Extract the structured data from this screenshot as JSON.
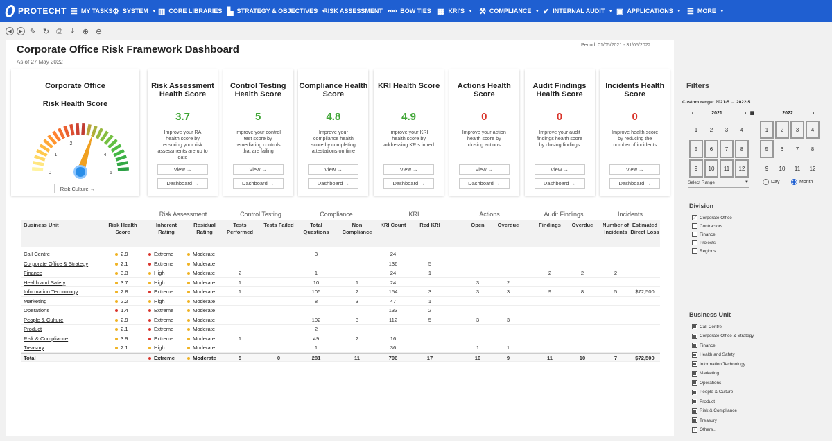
{
  "nav": {
    "logo": "PROTECHT",
    "items": [
      {
        "label": "MY TASKS",
        "icon": "☰",
        "caret": false
      },
      {
        "label": "SYSTEM",
        "icon": "⚙",
        "caret": true
      },
      {
        "label": "CORE LIBRARIES",
        "icon": "▥",
        "caret": true
      },
      {
        "label": "STRATEGY & OBJECTIVES",
        "icon": "▙",
        "caret": true
      },
      {
        "label": "RISK ASSESSMENT",
        "icon": "♆",
        "caret": true
      },
      {
        "label": "BOW TIES",
        "icon": "⚯",
        "caret": false
      },
      {
        "label": "KRI'S",
        "icon": "▦",
        "caret": true
      },
      {
        "label": "COMPLIANCE",
        "icon": "⚒",
        "caret": true
      },
      {
        "label": "INTERNAL AUDIT",
        "icon": "✔",
        "caret": true
      },
      {
        "label": "APPLICATIONS",
        "icon": "▣",
        "caret": true
      },
      {
        "label": "MORE",
        "icon": "☰",
        "caret": true
      }
    ]
  },
  "page": {
    "title": "Corporate Office Risk Framework Dashboard",
    "as_of": "As of 27 May 2022",
    "period": "Period: 01/05/2021 - 31/05/2022"
  },
  "corporate_card": {
    "title_line1": "Corporate Office",
    "title_line2": "Risk Health Score",
    "gauge_labels": [
      "0",
      "1",
      "2",
      "3",
      "4",
      "5"
    ],
    "gauge_value": 3,
    "button": "Risk Culture →"
  },
  "score_cards": [
    {
      "title": "Risk Assessment Health Score",
      "score": "3.7",
      "color": "#3fa535",
      "desc": "Improve your RA health score by ensuring your risk assessments are up to date",
      "view": "View →",
      "dashboard": "Dashboard →"
    },
    {
      "title": "Control Testing Health Score",
      "score": "5",
      "color": "#3fa535",
      "desc": "Improve your control test score by remediating controls that are failing",
      "view": "View →",
      "dashboard": "Dashboard →"
    },
    {
      "title": "Compliance Health Score",
      "score": "4.8",
      "color": "#3fa535",
      "desc": "Improve your compliance health score by completing attestations on time",
      "view": "View →",
      "dashboard": "Dashboard →"
    },
    {
      "title": "KRI Health Score",
      "score": "4.9",
      "color": "#3fa535",
      "desc": "Improve your KRI health score by addressing KRIs in red",
      "view": "View →",
      "dashboard": "Dashboard →"
    },
    {
      "title": "Actions Health Score",
      "score": "0",
      "color": "#d9342b",
      "desc": "Improve your action health score by closing actions",
      "view": "View →",
      "dashboard": "Dashboard →"
    },
    {
      "title": "Audit Findings Health Score",
      "score": "0",
      "color": "#d9342b",
      "desc": "Improve your audit findings health score by closing findings",
      "view": "View →",
      "dashboard": "Dashboard →"
    },
    {
      "title": "Incidents Health Score",
      "score": "0",
      "color": "#d9342b",
      "desc": "Improve health score by reducing the number of incidents",
      "view": "View →",
      "dashboard": "Dashboard →"
    }
  ],
  "table": {
    "groups": [
      "Risk Assessment",
      "Control Testing",
      "Compliance",
      "KRI",
      "Actions",
      "Audit Findings",
      "Incidents"
    ],
    "headers": [
      "Business Unit",
      "Risk Health Score",
      "Inherent Rating",
      "Residual Rating",
      "Tests Performed",
      "Tests Failed",
      "Total Questions",
      "Non Compliance",
      "KRI Count",
      "Red KRI",
      "Open",
      "Overdue",
      "Findings",
      "Overdue",
      "Number of Incidents",
      "Estimated Direct Loss"
    ],
    "rows": [
      {
        "bu": "Call Centre",
        "score": "2.9",
        "sc": "#f0b323",
        "inh": "Extreme",
        "ic": "#d9342b",
        "res": "Moderate",
        "rc": "#f0b323",
        "tp": "",
        "tf": "",
        "tq": "3",
        "nc": "",
        "kc": "24",
        "rk": "",
        "op": "",
        "od": "",
        "fi": "",
        "fo": "",
        "ni": "",
        "el": ""
      },
      {
        "bu": "Corporate Office & Strategy",
        "score": "2.1",
        "sc": "#f0b323",
        "inh": "Extreme",
        "ic": "#d9342b",
        "res": "Moderate",
        "rc": "#f0b323",
        "tp": "",
        "tf": "",
        "tq": "",
        "nc": "",
        "kc": "136",
        "rk": "5",
        "op": "",
        "od": "",
        "fi": "",
        "fo": "",
        "ni": "",
        "el": ""
      },
      {
        "bu": "Finance",
        "score": "3.3",
        "sc": "#f0b323",
        "inh": "High",
        "ic": "#f0b323",
        "res": "Moderate",
        "rc": "#f0b323",
        "tp": "2",
        "tf": "",
        "tq": "1",
        "nc": "",
        "kc": "24",
        "rk": "1",
        "op": "",
        "od": "",
        "fi": "2",
        "fo": "2",
        "ni": "2",
        "el": ""
      },
      {
        "bu": "Health and Safety",
        "score": "3.7",
        "sc": "#f0b323",
        "inh": "High",
        "ic": "#f0b323",
        "res": "Moderate",
        "rc": "#f0b323",
        "tp": "1",
        "tf": "",
        "tq": "10",
        "nc": "1",
        "kc": "24",
        "rk": "",
        "op": "3",
        "od": "2",
        "fi": "",
        "fo": "",
        "ni": "",
        "el": ""
      },
      {
        "bu": "Information Technology",
        "score": "2.8",
        "sc": "#f0b323",
        "inh": "Extreme",
        "ic": "#d9342b",
        "res": "Moderate",
        "rc": "#f0b323",
        "tp": "1",
        "tf": "",
        "tq": "105",
        "nc": "2",
        "kc": "154",
        "rk": "3",
        "op": "3",
        "od": "3",
        "fi": "9",
        "fo": "8",
        "ni": "5",
        "el": "$72,500"
      },
      {
        "bu": "Marketing",
        "score": "2.2",
        "sc": "#f0b323",
        "inh": "High",
        "ic": "#f0b323",
        "res": "Moderate",
        "rc": "#f0b323",
        "tp": "",
        "tf": "",
        "tq": "8",
        "nc": "3",
        "kc": "47",
        "rk": "1",
        "op": "",
        "od": "",
        "fi": "",
        "fo": "",
        "ni": "",
        "el": ""
      },
      {
        "bu": "Operations",
        "score": "1.4",
        "sc": "#d9342b",
        "inh": "Extreme",
        "ic": "#d9342b",
        "res": "Moderate",
        "rc": "#f0b323",
        "tp": "",
        "tf": "",
        "tq": "",
        "nc": "",
        "kc": "133",
        "rk": "2",
        "op": "",
        "od": "",
        "fi": "",
        "fo": "",
        "ni": "",
        "el": ""
      },
      {
        "bu": "People & Culture",
        "score": "2.9",
        "sc": "#f0b323",
        "inh": "Extreme",
        "ic": "#d9342b",
        "res": "Moderate",
        "rc": "#f0b323",
        "tp": "",
        "tf": "",
        "tq": "102",
        "nc": "3",
        "kc": "112",
        "rk": "5",
        "op": "3",
        "od": "3",
        "fi": "",
        "fo": "",
        "ni": "",
        "el": ""
      },
      {
        "bu": "Product",
        "score": "2.1",
        "sc": "#f0b323",
        "inh": "Extreme",
        "ic": "#d9342b",
        "res": "Moderate",
        "rc": "#f0b323",
        "tp": "",
        "tf": "",
        "tq": "2",
        "nc": "",
        "kc": "",
        "rk": "",
        "op": "",
        "od": "",
        "fi": "",
        "fo": "",
        "ni": "",
        "el": ""
      },
      {
        "bu": "Risk & Compliance",
        "score": "3.9",
        "sc": "#f0b323",
        "inh": "Extreme",
        "ic": "#d9342b",
        "res": "Moderate",
        "rc": "#f0b323",
        "tp": "1",
        "tf": "",
        "tq": "49",
        "nc": "2",
        "kc": "16",
        "rk": "",
        "op": "",
        "od": "",
        "fi": "",
        "fo": "",
        "ni": "",
        "el": ""
      },
      {
        "bu": "Treasury",
        "score": "2.1",
        "sc": "#f0b323",
        "inh": "High",
        "ic": "#f0b323",
        "res": "Moderate",
        "rc": "#f0b323",
        "tp": "",
        "tf": "",
        "tq": "1",
        "nc": "",
        "kc": "36",
        "rk": "",
        "op": "1",
        "od": "1",
        "fi": "",
        "fo": "",
        "ni": "",
        "el": ""
      }
    ],
    "total": {
      "bu": "Total",
      "inh": "Extreme",
      "ic": "#d9342b",
      "res": "Moderate",
      "rc": "#f0b323",
      "tp": "5",
      "tf": "0",
      "tq": "281",
      "nc": "11",
      "kc": "706",
      "rk": "17",
      "op": "10",
      "od": "9",
      "fi": "11",
      "fo": "10",
      "ni": "7",
      "el": "$72,500"
    }
  },
  "filters": {
    "title": "Filters",
    "custom_range": "Custom range: 2021-5 → 2022-5",
    "cal_left": {
      "year": "2021",
      "months": [
        "1",
        "2",
        "3",
        "4",
        "5",
        "6",
        "7",
        "8",
        "9",
        "10",
        "11",
        "12"
      ],
      "selected": [
        "5",
        "6",
        "7",
        "8",
        "9",
        "10",
        "11",
        "12"
      ]
    },
    "cal_right": {
      "year": "2022",
      "months": [
        "1",
        "2",
        "3",
        "4",
        "5",
        "6",
        "7",
        "8",
        "9",
        "10",
        "11",
        "12"
      ],
      "selected": [
        "1",
        "2",
        "3",
        "4",
        "5"
      ]
    },
    "select_range": "Select Range",
    "radio_day": "Day",
    "radio_month": "Month",
    "division_title": "Division",
    "division": [
      {
        "label": "Corporate Office",
        "checked": true
      },
      {
        "label": "Contractors",
        "checked": false
      },
      {
        "label": "Finance",
        "checked": false
      },
      {
        "label": "Projects",
        "checked": false
      },
      {
        "label": "Regions",
        "checked": false
      }
    ],
    "bu_title": "Business Unit",
    "business_units": [
      "Call Centre",
      "Corporate Office & Strategy",
      "Finance",
      "Health and Safety",
      "Information Technology",
      "Marketing",
      "Operations",
      "People & Culture",
      "Product",
      "Risk & Compliance",
      "Treasury",
      "Others..."
    ]
  }
}
